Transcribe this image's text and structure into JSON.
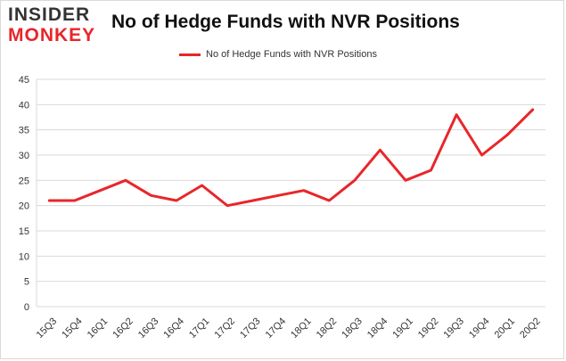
{
  "logo": {
    "line1": "INSIDER",
    "line2": "MONKEY"
  },
  "colors": {
    "series": "#e8262a",
    "grid": "#d9d9d9",
    "axis": "#333333"
  },
  "chart_data": {
    "type": "line",
    "title": "No of Hedge Funds with NVR Positions",
    "xlabel": "",
    "ylabel": "",
    "ylim": [
      0,
      45
    ],
    "yticks": [
      0,
      5,
      10,
      15,
      20,
      25,
      30,
      35,
      40,
      45
    ],
    "grid": true,
    "legend_placement": "top-center",
    "categories": [
      "15Q3",
      "15Q4",
      "16Q1",
      "16Q2",
      "16Q3",
      "16Q4",
      "17Q1",
      "17Q2",
      "17Q3",
      "17Q4",
      "18Q1",
      "18Q2",
      "18Q3",
      "18Q4",
      "19Q1",
      "19Q2",
      "19Q3",
      "19Q4",
      "20Q1",
      "20Q2"
    ],
    "series": [
      {
        "name": "No of Hedge Funds with NVR Positions",
        "values": [
          21,
          21,
          23,
          25,
          22,
          21,
          24,
          20,
          21,
          22,
          23,
          21,
          25,
          31,
          25,
          27,
          38,
          30,
          34,
          39
        ]
      }
    ]
  }
}
